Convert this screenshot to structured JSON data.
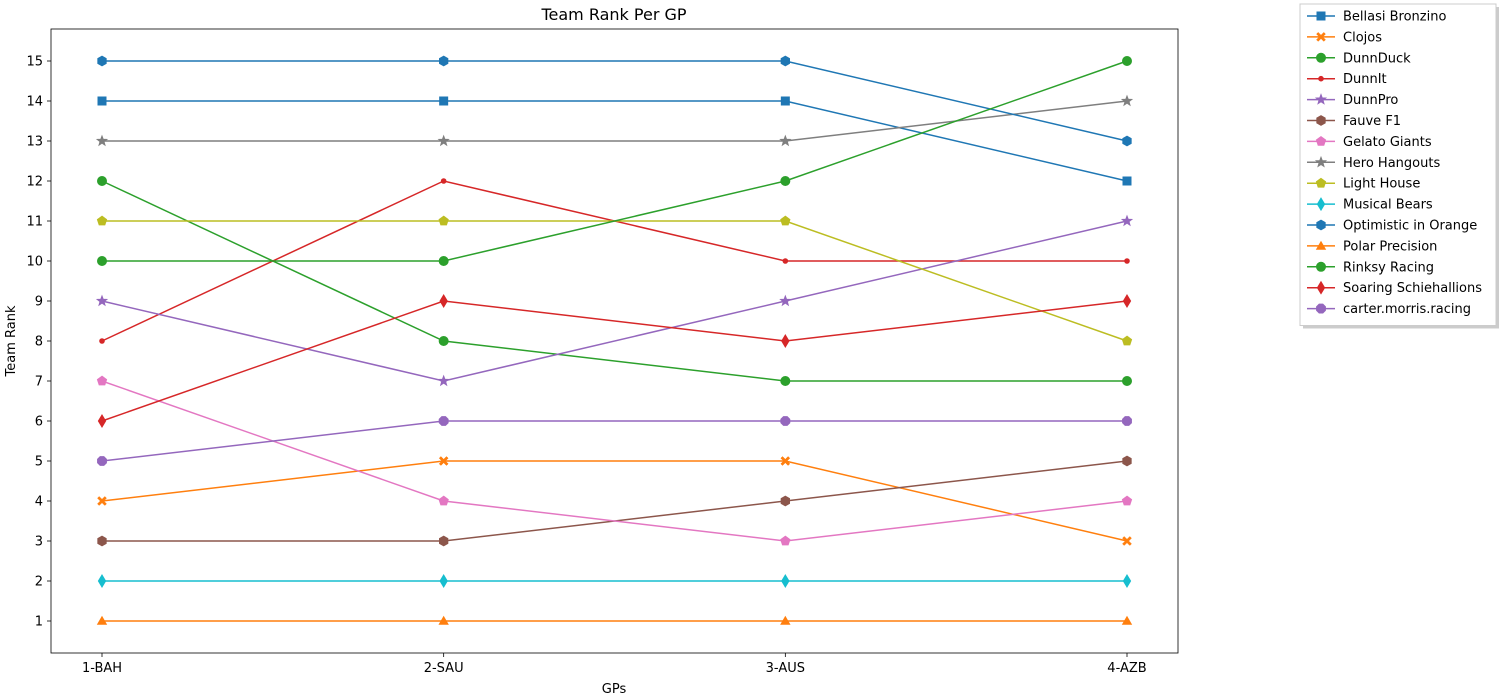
{
  "chart_data": {
    "type": "line",
    "title": "Team Rank Per GP",
    "xlabel": "GPs",
    "ylabel": "Team Rank",
    "categories": [
      "1-BAH",
      "2-SAU",
      "3-AUS",
      "4-AZB"
    ],
    "ylim": [
      0.2,
      15.8
    ],
    "yticks": [
      1,
      2,
      3,
      4,
      5,
      6,
      7,
      8,
      9,
      10,
      11,
      12,
      13,
      14,
      15
    ],
    "grid": false,
    "legend_position": "outside-top-right",
    "series": [
      {
        "name": "Bellasi Bronzino",
        "values": [
          14,
          14,
          14,
          12
        ],
        "color": "#1f77b4",
        "marker": "square"
      },
      {
        "name": "Clojos",
        "values": [
          4,
          5,
          5,
          3
        ],
        "color": "#ff7f0e",
        "marker": "x"
      },
      {
        "name": "DunnDuck",
        "values": [
          12,
          8,
          7,
          7
        ],
        "color": "#2ca02c",
        "marker": "circle"
      },
      {
        "name": "DunnIt",
        "values": [
          8,
          12,
          10,
          10
        ],
        "color": "#d62728",
        "marker": "point"
      },
      {
        "name": "DunnPro",
        "values": [
          9,
          7,
          9,
          11
        ],
        "color": "#9467bd",
        "marker": "star"
      },
      {
        "name": "Fauve F1",
        "values": [
          3,
          3,
          4,
          5
        ],
        "color": "#8c564b",
        "marker": "hexagon"
      },
      {
        "name": "Gelato Giants",
        "values": [
          7,
          4,
          3,
          4
        ],
        "color": "#e377c2",
        "marker": "pentagon"
      },
      {
        "name": "Hero Hangouts",
        "values": [
          13,
          13,
          13,
          14
        ],
        "color": "#7f7f7f",
        "marker": "star"
      },
      {
        "name": "Light House",
        "values": [
          11,
          11,
          11,
          8
        ],
        "color": "#bcbd22",
        "marker": "pentagon"
      },
      {
        "name": "Musical Bears",
        "values": [
          2,
          2,
          2,
          2
        ],
        "color": "#17becf",
        "marker": "thin-diamond"
      },
      {
        "name": "Optimistic in Orange",
        "values": [
          15,
          15,
          15,
          13
        ],
        "color": "#1f77b4",
        "marker": "hexagon"
      },
      {
        "name": "Polar Precision",
        "values": [
          1,
          1,
          1,
          1
        ],
        "color": "#ff7f0e",
        "marker": "triangle"
      },
      {
        "name": "Rinksy Racing",
        "values": [
          10,
          10,
          12,
          15
        ],
        "color": "#2ca02c",
        "marker": "circle"
      },
      {
        "name": "Soaring Schiehallions",
        "values": [
          6,
          9,
          8,
          9
        ],
        "color": "#d62728",
        "marker": "thin-diamond"
      },
      {
        "name": "carter.morris.racing",
        "values": [
          5,
          6,
          6,
          6
        ],
        "color": "#9467bd",
        "marker": "octagon"
      }
    ]
  }
}
